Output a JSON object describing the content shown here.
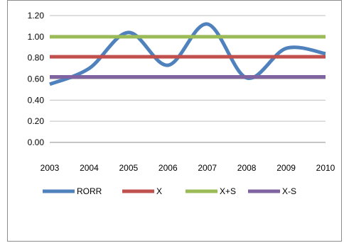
{
  "chart_data": {
    "type": "line",
    "title": "",
    "xlabel": "",
    "ylabel": "",
    "x": [
      "2003",
      "2004",
      "2005",
      "2006",
      "2007",
      "2008",
      "2009",
      "2010"
    ],
    "ylim": [
      0,
      1.2
    ],
    "yticks": [
      "0.00",
      "0.20",
      "0.40",
      "0.60",
      "0.80",
      "1.00",
      "1.20"
    ],
    "grid": "horizontal",
    "legend": "bottom",
    "series": [
      {
        "name": "RORR",
        "color": "#4f81bd",
        "values": [
          0.55,
          0.7,
          1.04,
          0.73,
          1.12,
          0.61,
          0.89,
          0.84
        ],
        "smooth": true
      },
      {
        "name": "X",
        "color": "#c0504d",
        "values": [
          0.81,
          0.81,
          0.81,
          0.81,
          0.81,
          0.81,
          0.81,
          0.81
        ]
      },
      {
        "name": "X+S",
        "color": "#9bbb59",
        "values": [
          1.0,
          1.0,
          1.0,
          1.0,
          1.0,
          1.0,
          1.0,
          1.0
        ]
      },
      {
        "name": "X-S",
        "color": "#8064a2",
        "values": [
          0.62,
          0.62,
          0.62,
          0.62,
          0.62,
          0.62,
          0.62,
          0.62
        ]
      }
    ]
  }
}
